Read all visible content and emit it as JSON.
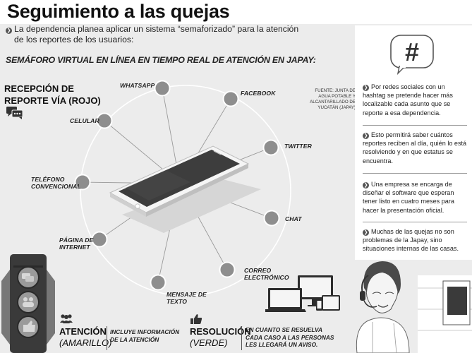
{
  "header": {
    "title": "Seguimiento a las quejas"
  },
  "intro": {
    "line1": "La dependencia planea aplicar un sistema “semaforizado” para la atención",
    "line2": "de los reportes de los usuarios:"
  },
  "subheading": "SEMÁFORO VIRTUAL EN LÍNEA EN TIEMPO REAL DE ATENCIÓN EN JAPAY:",
  "reception": {
    "line1": "RECEPCIÓN DE",
    "line2": "REPORTE VÍA (ROJO)"
  },
  "source": {
    "line1": "FUENTE: JUNTA DE",
    "line2": "AGUA POTABLE Y",
    "line3": "ALCANTARILLADO DE",
    "line4": "YUCATÁN (JAPAY)"
  },
  "channels": [
    {
      "label": "WHATSAPP"
    },
    {
      "label": "FACEBOOK"
    },
    {
      "label": "CELULAR"
    },
    {
      "label": "TWITTER"
    },
    {
      "label_line1": "TELÉFONO",
      "label_line2": "CONVENCIONAL"
    },
    {
      "label": "CHAT"
    },
    {
      "label_line1": "PÁGINA DE",
      "label_line2": "INTERNET"
    },
    {
      "label_line1": "CORREO",
      "label_line2": "ELECTRÓNICO"
    },
    {
      "label_line1": "MENSAJE DE",
      "label_line2": "TEXTO"
    }
  ],
  "side_panel": {
    "items": [
      {
        "text": "Por redes sociales con un hashtag se pretende hacer más localizable cada asunto que se reporte a esa dependencia."
      },
      {
        "text": "Esto permitirá saber cuántos reportes reciben al día, quién lo está resolviendo y en que estatus se encuentra."
      },
      {
        "text": "Una empresa se encarga de diseñar el software que esperan tener listo en cuatro meses para hacer la presentación oficial."
      },
      {
        "text": "Muchas de las quejas no son problemas de la Japay, sino situaciones internas de las casas."
      }
    ],
    "hashtag_symbol": "#"
  },
  "legend": {
    "attention": {
      "title": "ATENCIÓN",
      "color": "(AMARILLO)",
      "text_line1": "INCLUYE INFORMACIÓN",
      "text_line2": "DE LA ATENCIÓN"
    },
    "resolution": {
      "title": "RESOLUCIÓN",
      "color": "(VERDE)",
      "text_line1": "EN CUANTO SE RESUELVA",
      "text_line2": "CADA CASO A LAS PERSONAS",
      "text_line3": "LES LLEGARÁ UN AVISO."
    }
  },
  "colors": {
    "background": "#ececec",
    "node_gray": "#8e8e8e",
    "ring_line": "#ffffff",
    "text_dark": "#111111",
    "traffic_light": "#3a3a3a"
  },
  "icons": {
    "bullet": "bullet-icon",
    "chat": "chat-bubble-icon",
    "hashtag": "hashtag-bubble-icon",
    "group": "group-icon",
    "thumbs_up": "thumbs-up-icon"
  }
}
